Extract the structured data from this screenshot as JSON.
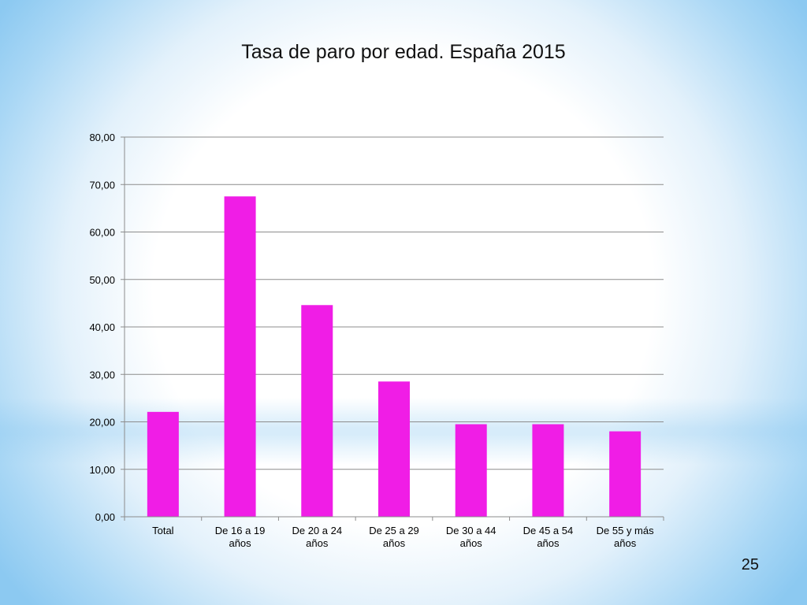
{
  "slide": {
    "page_number": "25"
  },
  "chart_data": {
    "type": "bar",
    "title": "Tasa de paro por edad. España 2015",
    "xlabel": "",
    "ylabel": "",
    "categories": [
      [
        "Total"
      ],
      [
        "De 16 a 19",
        "años"
      ],
      [
        "De 20 a 24",
        "años"
      ],
      [
        "De 25 a 29",
        "años"
      ],
      [
        "De 30 a 44",
        "años"
      ],
      [
        "De 45 a 54",
        "años"
      ],
      [
        "De 55 y más",
        "años"
      ]
    ],
    "values": [
      22.1,
      67.5,
      44.6,
      28.5,
      19.5,
      19.5,
      18.0
    ],
    "ylim": [
      0,
      80
    ],
    "yticks": [
      "0,00",
      "10,00",
      "20,00",
      "30,00",
      "40,00",
      "50,00",
      "60,00",
      "70,00",
      "80,00"
    ],
    "bar_color": "#f01de6",
    "grid": true,
    "legend": "none"
  }
}
